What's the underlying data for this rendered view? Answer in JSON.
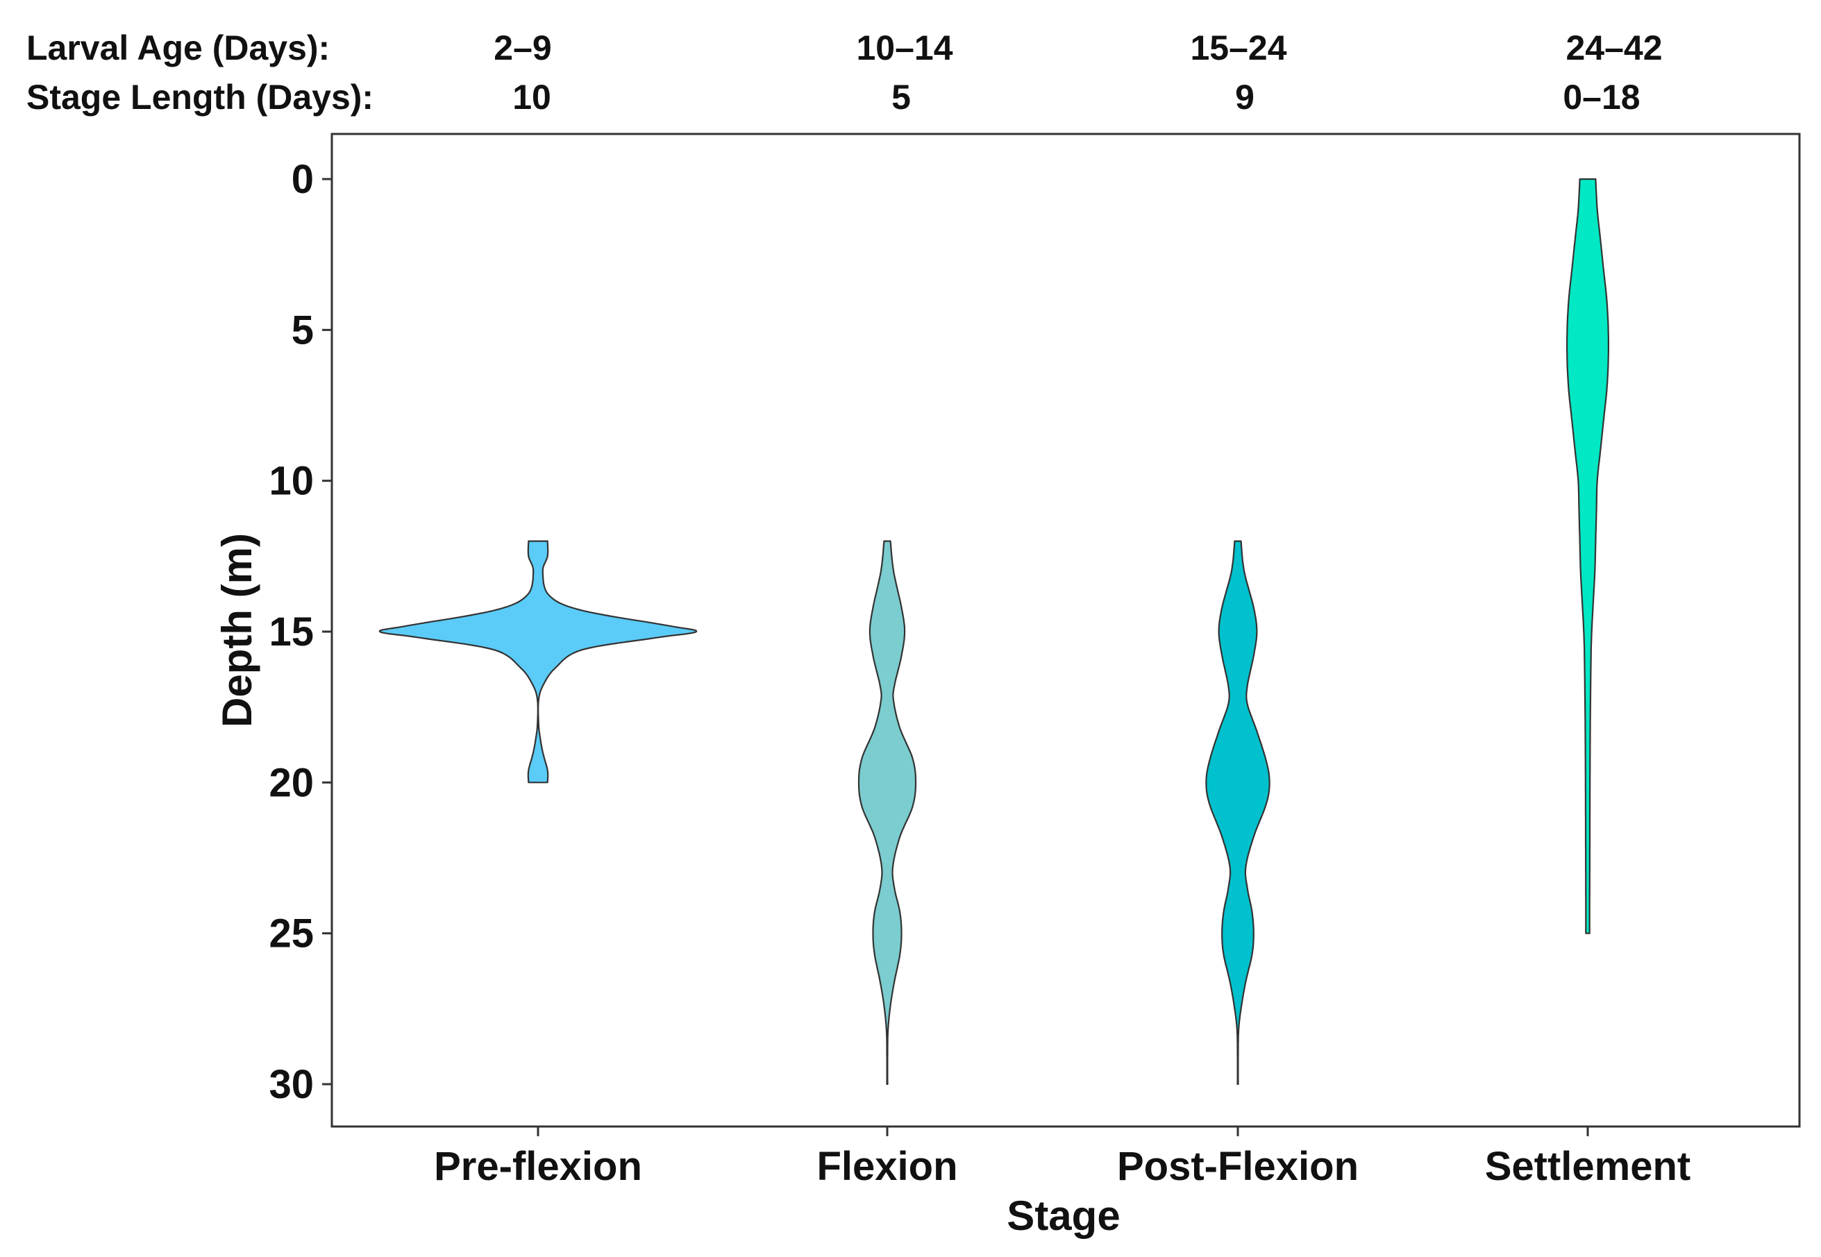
{
  "header": {
    "row1_label": "Larval Age (Days):",
    "row2_label": "Stage Length (Days):",
    "columns": [
      {
        "age": "2–9",
        "length": "10"
      },
      {
        "age": "10–14",
        "length": "5"
      },
      {
        "age": "15–24",
        "length": "9"
      },
      {
        "age": "24–42",
        "length": "0–18"
      }
    ]
  },
  "chart_data": {
    "type": "violin",
    "xlabel": "Stage",
    "ylabel": "Depth (m)",
    "ylim": [
      0,
      30
    ],
    "y_reversed": true,
    "yticks": [
      0,
      5,
      10,
      15,
      20,
      25,
      30
    ],
    "categories": [
      "Pre-flexion",
      "Flexion",
      "Post-Flexion",
      "Settlement"
    ],
    "colors": [
      "#5BCBF8",
      "#7BCDCF",
      "#00C1CD",
      "#00E8C4"
    ],
    "outline_color": "#333333",
    "violins": [
      {
        "category": "Pre-flexion",
        "depth_range": [
          12,
          20
        ],
        "profile": [
          [
            12,
            0.06
          ],
          [
            12.5,
            0.06
          ],
          [
            13,
            0.03
          ],
          [
            13.8,
            0.07
          ],
          [
            14.3,
            0.28
          ],
          [
            14.8,
            0.82
          ],
          [
            15,
            1.0
          ],
          [
            15.2,
            0.75
          ],
          [
            15.6,
            0.28
          ],
          [
            16.2,
            0.11
          ],
          [
            16.8,
            0.03
          ],
          [
            17.3,
            0.003
          ],
          [
            18,
            0.003
          ],
          [
            18.4,
            0.01
          ],
          [
            19,
            0.03
          ],
          [
            19.6,
            0.06
          ],
          [
            20,
            0.06
          ]
        ]
      },
      {
        "category": "Flexion",
        "depth_range": [
          12,
          30
        ],
        "profile": [
          [
            12,
            0.02
          ],
          [
            13,
            0.04
          ],
          [
            14.2,
            0.09
          ],
          [
            15,
            0.11
          ],
          [
            15.8,
            0.09
          ],
          [
            16.8,
            0.045
          ],
          [
            17.3,
            0.04
          ],
          [
            18.2,
            0.08
          ],
          [
            19.2,
            0.16
          ],
          [
            20,
            0.18
          ],
          [
            20.8,
            0.16
          ],
          [
            21.8,
            0.08
          ],
          [
            22.8,
            0.035
          ],
          [
            23.5,
            0.045
          ],
          [
            24.3,
            0.08
          ],
          [
            25,
            0.09
          ],
          [
            25.7,
            0.08
          ],
          [
            26.6,
            0.045
          ],
          [
            27.4,
            0.02
          ],
          [
            28.2,
            0.005
          ],
          [
            29,
            0.002
          ],
          [
            30,
            0.002
          ]
        ]
      },
      {
        "category": "Post-Flexion",
        "depth_range": [
          12,
          30
        ],
        "profile": [
          [
            12,
            0.02
          ],
          [
            13,
            0.04
          ],
          [
            14.2,
            0.1
          ],
          [
            15,
            0.12
          ],
          [
            15.8,
            0.1
          ],
          [
            16.8,
            0.06
          ],
          [
            17.4,
            0.06
          ],
          [
            18.3,
            0.12
          ],
          [
            19.3,
            0.18
          ],
          [
            20,
            0.2
          ],
          [
            20.7,
            0.18
          ],
          [
            21.8,
            0.1
          ],
          [
            22.8,
            0.05
          ],
          [
            23.5,
            0.06
          ],
          [
            24.3,
            0.09
          ],
          [
            25,
            0.1
          ],
          [
            25.7,
            0.09
          ],
          [
            26.6,
            0.05
          ],
          [
            27.5,
            0.02
          ],
          [
            28.2,
            0.005
          ],
          [
            29,
            0.002
          ],
          [
            30,
            0.002
          ]
        ]
      },
      {
        "category": "Settlement",
        "depth_range": [
          0,
          25
        ],
        "profile": [
          [
            0,
            0.05
          ],
          [
            1,
            0.06
          ],
          [
            2,
            0.08
          ],
          [
            3,
            0.1
          ],
          [
            4,
            0.12
          ],
          [
            5,
            0.13
          ],
          [
            6,
            0.13
          ],
          [
            7,
            0.12
          ],
          [
            8,
            0.1
          ],
          [
            9,
            0.08
          ],
          [
            10,
            0.06
          ],
          [
            11,
            0.055
          ],
          [
            12,
            0.05
          ],
          [
            13,
            0.045
          ],
          [
            14,
            0.035
          ],
          [
            15,
            0.025
          ],
          [
            16,
            0.02
          ],
          [
            18,
            0.016
          ],
          [
            20,
            0.014
          ],
          [
            22,
            0.013
          ],
          [
            24,
            0.012
          ],
          [
            25,
            0.012
          ]
        ]
      }
    ]
  }
}
